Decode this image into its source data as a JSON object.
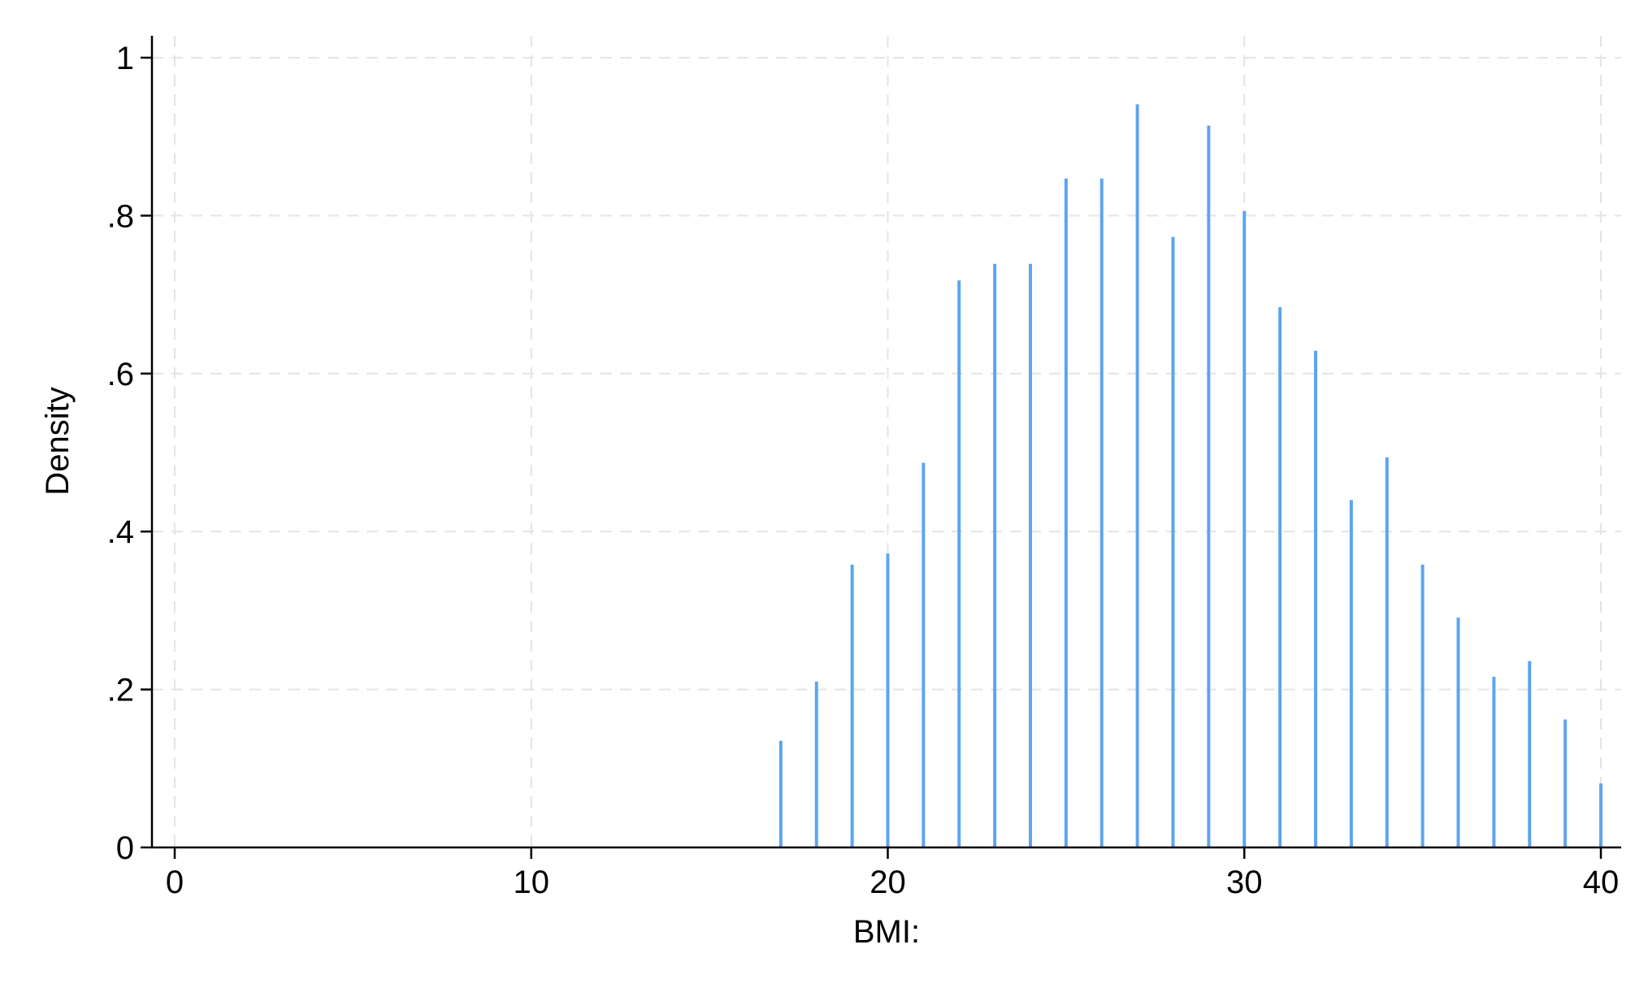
{
  "chart_data": {
    "type": "bar",
    "subtype": "spike",
    "xlabel": "BMI:",
    "ylabel": "Density",
    "xlim": [
      0,
      40
    ],
    "ylim": [
      0,
      1
    ],
    "x_ticks": [
      0,
      10,
      20,
      30,
      40
    ],
    "x_tick_labels": [
      "0",
      "10",
      "20",
      "30",
      "40"
    ],
    "y_ticks": [
      0,
      0.2,
      0.4,
      0.6,
      0.8,
      1
    ],
    "y_tick_labels": [
      "0",
      ".2",
      ".4",
      ".6",
      ".8",
      "1"
    ],
    "grid": true,
    "color": "#5ea4ef",
    "x": [
      17,
      18,
      19,
      20,
      21,
      22,
      23,
      24,
      25,
      26,
      27,
      28,
      29,
      30,
      31,
      32,
      33,
      34,
      35,
      36,
      37,
      38,
      39,
      40
    ],
    "values": [
      0.135,
      0.21,
      0.358,
      0.372,
      0.487,
      0.718,
      0.739,
      0.739,
      0.847,
      0.847,
      0.941,
      0.773,
      0.914,
      0.806,
      0.684,
      0.629,
      0.44,
      0.494,
      0.358,
      0.291,
      0.216,
      0.236,
      0.162,
      0.081
    ]
  }
}
